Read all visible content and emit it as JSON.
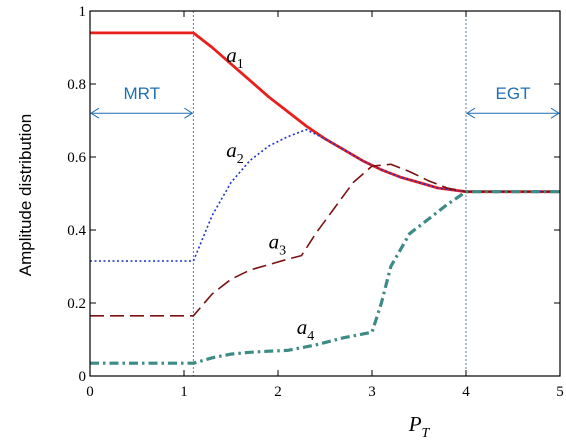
{
  "chart_data": {
    "type": "line",
    "title": "",
    "xlabel": {
      "main": "P",
      "sub": "T"
    },
    "ylabel": "Amplitude distribution",
    "xlim": [
      0,
      5
    ],
    "ylim": [
      0,
      1
    ],
    "xticks": [
      0,
      1,
      2,
      3,
      4,
      5
    ],
    "yticks": [
      0,
      0.2,
      0.4,
      0.6,
      0.8,
      1
    ],
    "xtick_labels": [
      "0",
      "1",
      "2",
      "3",
      "4",
      "5"
    ],
    "ytick_labels": [
      "0",
      "0.2",
      "0.4",
      "0.6",
      "0.8",
      "1"
    ],
    "grid": false,
    "colors": {
      "a1": "#e8201c",
      "a2": "#1a2fd6",
      "a3": "#7b1212",
      "a4": "#3d8b86",
      "region": "#1f6fb5",
      "divider": "#5577bb"
    },
    "vlines": [
      1.1,
      4.0
    ],
    "regions": [
      {
        "label": "MRT",
        "x_start": 0,
        "x_end": 1.1,
        "y": 0.72
      },
      {
        "label": "EGT",
        "x_start": 4.0,
        "x_end": 5,
        "y": 0.72
      }
    ],
    "series": [
      {
        "key": "a1",
        "label": {
          "main": "a",
          "sub": "1"
        },
        "label_pos": [
          1.45,
          0.86
        ],
        "style": "solid",
        "points": [
          [
            0,
            0.94
          ],
          [
            1.1,
            0.94
          ],
          [
            1.3,
            0.9
          ],
          [
            1.5,
            0.855
          ],
          [
            1.7,
            0.81
          ],
          [
            1.9,
            0.765
          ],
          [
            2.1,
            0.725
          ],
          [
            2.3,
            0.685
          ],
          [
            2.5,
            0.65
          ],
          [
            2.7,
            0.62
          ],
          [
            2.9,
            0.59
          ],
          [
            3.1,
            0.565
          ],
          [
            3.3,
            0.545
          ],
          [
            3.5,
            0.53
          ],
          [
            3.7,
            0.515
          ],
          [
            4.0,
            0.505
          ],
          [
            5.0,
            0.505
          ]
        ]
      },
      {
        "key": "a2",
        "label": {
          "main": "a",
          "sub": "2"
        },
        "label_pos": [
          1.45,
          0.6
        ],
        "style": "dotted",
        "points": [
          [
            0,
            0.315
          ],
          [
            1.1,
            0.315
          ],
          [
            1.3,
            0.44
          ],
          [
            1.5,
            0.53
          ],
          [
            1.7,
            0.59
          ],
          [
            1.9,
            0.63
          ],
          [
            2.1,
            0.655
          ],
          [
            2.3,
            0.675
          ],
          [
            2.5,
            0.65
          ],
          [
            2.7,
            0.62
          ],
          [
            2.9,
            0.59
          ],
          [
            3.1,
            0.565
          ],
          [
            3.3,
            0.545
          ],
          [
            3.5,
            0.53
          ],
          [
            3.7,
            0.515
          ],
          [
            4.0,
            0.505
          ],
          [
            5.0,
            0.505
          ]
        ]
      },
      {
        "key": "a3",
        "label": {
          "main": "a",
          "sub": "3"
        },
        "label_pos": [
          1.9,
          0.35
        ],
        "style": "dashed",
        "points": [
          [
            0,
            0.165
          ],
          [
            1.1,
            0.165
          ],
          [
            1.3,
            0.225
          ],
          [
            1.5,
            0.265
          ],
          [
            1.7,
            0.29
          ],
          [
            1.9,
            0.305
          ],
          [
            2.1,
            0.32
          ],
          [
            2.25,
            0.33
          ],
          [
            2.4,
            0.39
          ],
          [
            2.6,
            0.46
          ],
          [
            2.8,
            0.53
          ],
          [
            3.0,
            0.575
          ],
          [
            3.2,
            0.58
          ],
          [
            3.4,
            0.56
          ],
          [
            3.6,
            0.535
          ],
          [
            3.8,
            0.515
          ],
          [
            4.0,
            0.505
          ],
          [
            5.0,
            0.505
          ]
        ]
      },
      {
        "key": "a4",
        "label": {
          "main": "a",
          "sub": "4"
        },
        "label_pos": [
          2.2,
          0.115
        ],
        "style": "dashdot",
        "points": [
          [
            0,
            0.035
          ],
          [
            1.1,
            0.035
          ],
          [
            1.3,
            0.05
          ],
          [
            1.5,
            0.06
          ],
          [
            1.7,
            0.065
          ],
          [
            1.9,
            0.068
          ],
          [
            2.1,
            0.07
          ],
          [
            2.4,
            0.085
          ],
          [
            2.7,
            0.105
          ],
          [
            3.0,
            0.12
          ],
          [
            3.1,
            0.2
          ],
          [
            3.2,
            0.3
          ],
          [
            3.4,
            0.39
          ],
          [
            3.6,
            0.43
          ],
          [
            3.8,
            0.47
          ],
          [
            4.0,
            0.505
          ],
          [
            5.0,
            0.505
          ]
        ]
      }
    ]
  }
}
